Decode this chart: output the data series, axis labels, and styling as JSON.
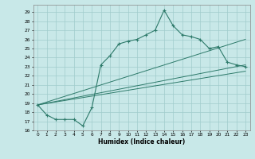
{
  "xlabel": "Humidex (Indice chaleur)",
  "bg_color": "#c8e8e8",
  "line_color": "#2d7a6a",
  "grid_color": "#a0cccc",
  "xlim": [
    -0.5,
    23.5
  ],
  "ylim": [
    16,
    29.8
  ],
  "xticks": [
    0,
    1,
    2,
    3,
    4,
    5,
    6,
    7,
    8,
    9,
    10,
    11,
    12,
    13,
    14,
    15,
    16,
    17,
    18,
    19,
    20,
    21,
    22,
    23
  ],
  "yticks": [
    16,
    17,
    18,
    19,
    20,
    21,
    22,
    23,
    24,
    25,
    26,
    27,
    28,
    29
  ],
  "curve1_x": [
    0,
    1,
    2,
    3,
    4,
    5,
    6,
    7,
    8,
    9,
    10,
    11,
    12,
    13,
    14,
    15,
    16,
    17,
    18,
    19,
    20,
    21,
    22,
    23
  ],
  "curve1_y": [
    18.8,
    17.7,
    17.2,
    17.2,
    17.2,
    16.5,
    18.5,
    23.2,
    24.2,
    25.5,
    25.8,
    26.0,
    26.5,
    27.0,
    29.2,
    27.5,
    26.5,
    26.3,
    26.0,
    25.0,
    25.2,
    23.5,
    23.2,
    23.0
  ],
  "line1_x": [
    0,
    23
  ],
  "line1_y": [
    18.8,
    26.0
  ],
  "line2_x": [
    0,
    23
  ],
  "line2_y": [
    18.8,
    22.5
  ],
  "line3_x": [
    0,
    23
  ],
  "line3_y": [
    18.8,
    23.2
  ]
}
